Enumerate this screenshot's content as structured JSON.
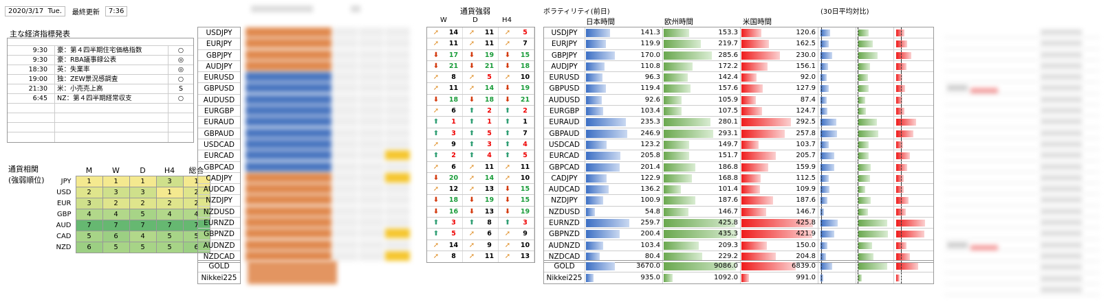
{
  "header": {
    "date": "2020/3/17",
    "weekday": "Tue.",
    "updated_label": "最終更新",
    "time": "7:36"
  },
  "calendar": {
    "title": "主な経済指標発表",
    "rows": [
      {
        "time": "9:30",
        "event": "豪：第４四半期住宅価格指数",
        "mark": "○"
      },
      {
        "time": "9:30",
        "event": "豪：RBA議事録公表",
        "mark": "◎"
      },
      {
        "time": "18:30",
        "event": "英：失業率",
        "mark": "◎"
      },
      {
        "time": "19:00",
        "event": "独：ZEW景況感調査",
        "mark": "○"
      },
      {
        "time": "21:30",
        "event": "米：小売売上高",
        "mark": "S"
      },
      {
        "time": "6:45",
        "event": "NZ：第４四半期経常収支",
        "mark": "○"
      },
      {
        "time": "",
        "event": "",
        "mark": ""
      },
      {
        "time": "",
        "event": "",
        "mark": ""
      },
      {
        "time": "",
        "event": "",
        "mark": ""
      },
      {
        "time": "",
        "event": "",
        "mark": ""
      }
    ]
  },
  "correlation": {
    "label1": "通貨相関",
    "label2": "(強弱順位)",
    "headers": [
      "M",
      "W",
      "D",
      "H4",
      "総合"
    ],
    "rows": [
      {
        "ccy": "JPY",
        "vals": [
          1,
          1,
          1,
          3,
          1
        ]
      },
      {
        "ccy": "USD",
        "vals": [
          2,
          3,
          3,
          1,
          2
        ]
      },
      {
        "ccy": "EUR",
        "vals": [
          3,
          2,
          2,
          2,
          2
        ]
      },
      {
        "ccy": "GBP",
        "vals": [
          4,
          4,
          5,
          4,
          4
        ]
      },
      {
        "ccy": "AUD",
        "vals": [
          7,
          7,
          7,
          7,
          7
        ]
      },
      {
        "ccy": "CAD",
        "vals": [
          5,
          6,
          4,
          5,
          5
        ]
      },
      {
        "ccy": "NZD",
        "vals": [
          6,
          5,
          5,
          5,
          6
        ]
      }
    ],
    "colors": {
      "1": "#f4e98f",
      "2": "#dfe58c",
      "3": "#cfe08b",
      "4": "#b2d88a",
      "5": "#a7d487",
      "6": "#9ccf83",
      "7": "#66b871"
    }
  },
  "pairs": [
    "USDJPY",
    "EURJPY",
    "GBPJPY",
    "AUDJPY",
    "EURUSD",
    "GBPUSD",
    "AUDUSD",
    "EURGBP",
    "EURAUD",
    "GBPAUD",
    "USDCAD",
    "EURCAD",
    "GBPCAD",
    "CADJPY",
    "AUDCAD",
    "NZDJPY",
    "NZDUSD",
    "EURNZD",
    "GBPNZD",
    "AUDNZD",
    "NZDCAD"
  ],
  "pairs_extra": [
    "GOLD",
    "Nikkei225"
  ],
  "strength": {
    "title": "通貨強弱",
    "headers": [
      "W",
      "D",
      "H4"
    ],
    "rows": [
      [
        [
          "sd",
          14,
          "k"
        ],
        [
          "sd",
          11,
          "k"
        ],
        [
          "sd",
          5,
          "rr"
        ]
      ],
      [
        [
          "sd",
          11,
          "k"
        ],
        [
          "sd",
          11,
          "k"
        ],
        [
          "sd",
          7,
          "k"
        ]
      ],
      [
        [
          "dn",
          17,
          "g"
        ],
        [
          "dn",
          19,
          "g"
        ],
        [
          "dn",
          15,
          "g"
        ]
      ],
      [
        [
          "dn",
          21,
          "g"
        ],
        [
          "dn",
          21,
          "g"
        ],
        [
          "dn",
          18,
          "g"
        ]
      ],
      [
        [
          "sd",
          8,
          "k"
        ],
        [
          "sd",
          5,
          "rr"
        ],
        [
          "sd",
          10,
          "k"
        ]
      ],
      [
        [
          "sd",
          11,
          "k"
        ],
        [
          "sd",
          14,
          "g"
        ],
        [
          "dn",
          19,
          "g"
        ]
      ],
      [
        [
          "dn",
          18,
          "g"
        ],
        [
          "dn",
          18,
          "g"
        ],
        [
          "dn",
          21,
          "g"
        ]
      ],
      [
        [
          "sd",
          6,
          "k"
        ],
        [
          "up",
          2,
          "rr"
        ],
        [
          "up",
          2,
          "rr"
        ]
      ],
      [
        [
          "up",
          1,
          "rr"
        ],
        [
          "up",
          1,
          "rr"
        ],
        [
          "up",
          1,
          "k"
        ]
      ],
      [
        [
          "up",
          3,
          "rr"
        ],
        [
          "up",
          5,
          "rr"
        ],
        [
          "up",
          7,
          "k"
        ]
      ],
      [
        [
          "sd",
          9,
          "k"
        ],
        [
          "up",
          3,
          "rr"
        ],
        [
          "up",
          4,
          "rr"
        ]
      ],
      [
        [
          "up",
          2,
          "rr"
        ],
        [
          "up",
          4,
          "rr"
        ],
        [
          "up",
          5,
          "rr"
        ]
      ],
      [
        [
          "sd",
          6,
          "k"
        ],
        [
          "sd",
          11,
          "k"
        ],
        [
          "sd",
          11,
          "k"
        ]
      ],
      [
        [
          "dn",
          20,
          "g"
        ],
        [
          "sd",
          14,
          "g"
        ],
        [
          "sd",
          10,
          "k"
        ]
      ],
      [
        [
          "sd",
          12,
          "k"
        ],
        [
          "sd",
          13,
          "k"
        ],
        [
          "dn",
          15,
          "g"
        ]
      ],
      [
        [
          "dn",
          18,
          "g"
        ],
        [
          "dn",
          19,
          "g"
        ],
        [
          "dn",
          15,
          "g"
        ]
      ],
      [
        [
          "dn",
          16,
          "g"
        ],
        [
          "dn",
          13,
          "k"
        ],
        [
          "dn",
          19,
          "g"
        ]
      ],
      [
        [
          "up",
          3,
          "rr"
        ],
        [
          "up",
          8,
          "k"
        ],
        [
          "up",
          3,
          "rr"
        ]
      ],
      [
        [
          "up",
          5,
          "rr"
        ],
        [
          "sd",
          6,
          "k"
        ],
        [
          "sd",
          9,
          "k"
        ]
      ],
      [
        [
          "sd",
          14,
          "k"
        ],
        [
          "sd",
          9,
          "k"
        ],
        [
          "sd",
          10,
          "k"
        ]
      ],
      [
        [
          "sd",
          8,
          "k"
        ],
        [
          "sd",
          11,
          "k"
        ],
        [
          "sd",
          13,
          "k"
        ]
      ]
    ]
  },
  "volatility": {
    "title": "ボラティリティ(前日)",
    "title2": "(30日平均対比)",
    "sessions": [
      "日本時間",
      "欧州時間",
      "米国時間"
    ],
    "rows": [
      [
        141.3,
        153.3,
        120.6
      ],
      [
        119.9,
        219.7,
        162.5
      ],
      [
        170.0,
        285.6,
        230.0
      ],
      [
        110.8,
        172.2,
        156.1
      ],
      [
        96.3,
        142.4,
        92.0
      ],
      [
        119.4,
        157.6,
        127.9
      ],
      [
        92.6,
        105.9,
        87.4
      ],
      [
        103.4,
        107.5,
        124.7
      ],
      [
        235.3,
        280.1,
        292.5
      ],
      [
        246.9,
        293.1,
        257.8
      ],
      [
        123.2,
        149.7,
        103.7
      ],
      [
        205.8,
        151.7,
        205.7
      ],
      [
        201.4,
        186.8,
        159.9
      ],
      [
        122.9,
        168.8,
        112.5
      ],
      [
        136.2,
        101.4,
        109.9
      ],
      [
        100.9,
        187.6,
        187.6
      ],
      [
        54.8,
        146.7,
        146.7
      ],
      [
        259.7,
        425.8,
        425.8
      ],
      [
        200.4,
        435.3,
        421.9
      ],
      [
        103.4,
        209.3,
        150.0
      ],
      [
        80.4,
        229.2,
        204.8
      ]
    ],
    "extra_rows": [
      [
        3670.0,
        9086.0,
        6839.0
      ],
      [
        935.0,
        1092.0,
        991.0
      ]
    ]
  }
}
